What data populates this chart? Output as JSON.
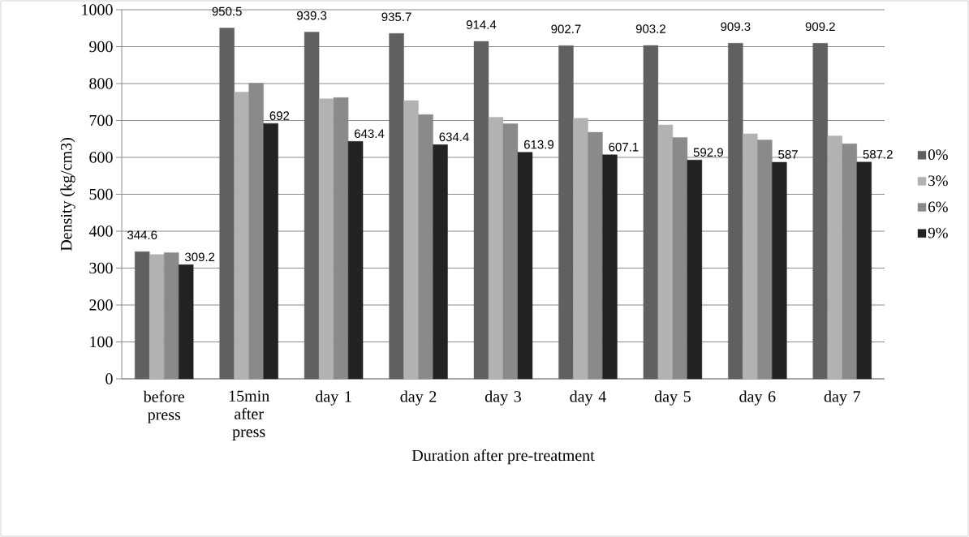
{
  "chart_data": {
    "type": "bar",
    "xlabel": "Duration after pre-treatment",
    "ylabel": "Density (kg/cm3)",
    "categories": [
      "before press",
      "15min after press",
      "day 1",
      "day 2",
      "day 3",
      "day 4",
      "day 5",
      "day 6",
      "day 7"
    ],
    "series": [
      {
        "name": "0%",
        "color": "#606060",
        "values": [
          344.6,
          950.5,
          939.3,
          935.7,
          914.4,
          902.7,
          903.2,
          909.3,
          909.2
        ],
        "value_labels": [
          "344.6",
          "950.5",
          "939.3",
          "935.7",
          "914.4",
          "902.7",
          "903.2",
          "909.3",
          "909.2"
        ]
      },
      {
        "name": "3%",
        "color": "#b2b2b2",
        "values": [
          337,
          777,
          759,
          754,
          709,
          706,
          688,
          664,
          658
        ]
      },
      {
        "name": "6%",
        "color": "#8a8a8a",
        "values": [
          342,
          801,
          762,
          716,
          691,
          668,
          654,
          647,
          637
        ]
      },
      {
        "name": "9%",
        "color": "#222222",
        "values": [
          309.2,
          692,
          643.4,
          634.4,
          613.9,
          607.1,
          592.9,
          587,
          587.2
        ],
        "value_labels": [
          "309.2",
          "692",
          "643.4",
          "634.4",
          "613.9",
          "607.1",
          "592.9",
          "587",
          "587.2"
        ]
      }
    ],
    "ylim": [
      0,
      1000
    ],
    "yticks": [
      0,
      100,
      200,
      300,
      400,
      500,
      600,
      700,
      800,
      900,
      1000
    ],
    "grid": "y",
    "legend": "right"
  }
}
